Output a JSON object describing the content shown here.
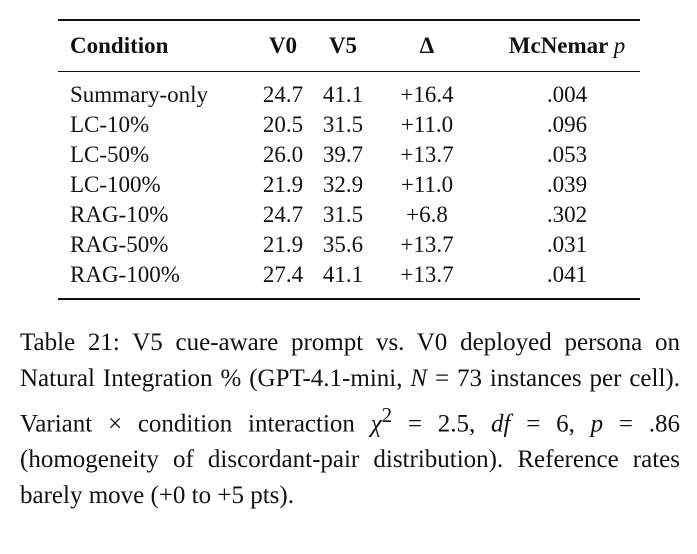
{
  "table": {
    "headers": {
      "condition": "Condition",
      "v0": "V0",
      "v5": "V5",
      "delta": "Δ",
      "mcnemar_prefix": "McNemar ",
      "mcnemar_var": "p"
    },
    "rows": [
      {
        "condition": "Summary-only",
        "v0": "24.7",
        "v5": "41.1",
        "delta": "+16.4",
        "p": ".004"
      },
      {
        "condition": "LC-10%",
        "v0": "20.5",
        "v5": "31.5",
        "delta": "+11.0",
        "p": ".096"
      },
      {
        "condition": "LC-50%",
        "v0": "26.0",
        "v5": "39.7",
        "delta": "+13.7",
        "p": ".053"
      },
      {
        "condition": "LC-100%",
        "v0": "21.9",
        "v5": "32.9",
        "delta": "+11.0",
        "p": ".039"
      },
      {
        "condition": "RAG-10%",
        "v0": "24.7",
        "v5": "31.5",
        "delta": "+6.8",
        "p": ".302"
      },
      {
        "condition": "RAG-50%",
        "v0": "21.9",
        "v5": "35.6",
        "delta": "+13.7",
        "p": ".031"
      },
      {
        "condition": "RAG-100%",
        "v0": "27.4",
        "v5": "41.1",
        "delta": "+13.7",
        "p": ".041"
      }
    ]
  },
  "caption": {
    "part1": "Table 21: V5 cue-aware prompt vs. V0 deployed persona on Natural Integration % (GPT-4.1-mini, ",
    "n_var": "N",
    "part2": " = 73 instances per cell).  Variant × condition interaction ",
    "chi_var": "χ",
    "chi_sup": "2",
    "part3": " = 2.5, ",
    "df_var": "df",
    "part4": " = 6, ",
    "p_var": "p",
    "part5": " = .86 (homogeneity of discordant-pair distribution). Reference rates barely move (+0 to +5 pts)."
  }
}
